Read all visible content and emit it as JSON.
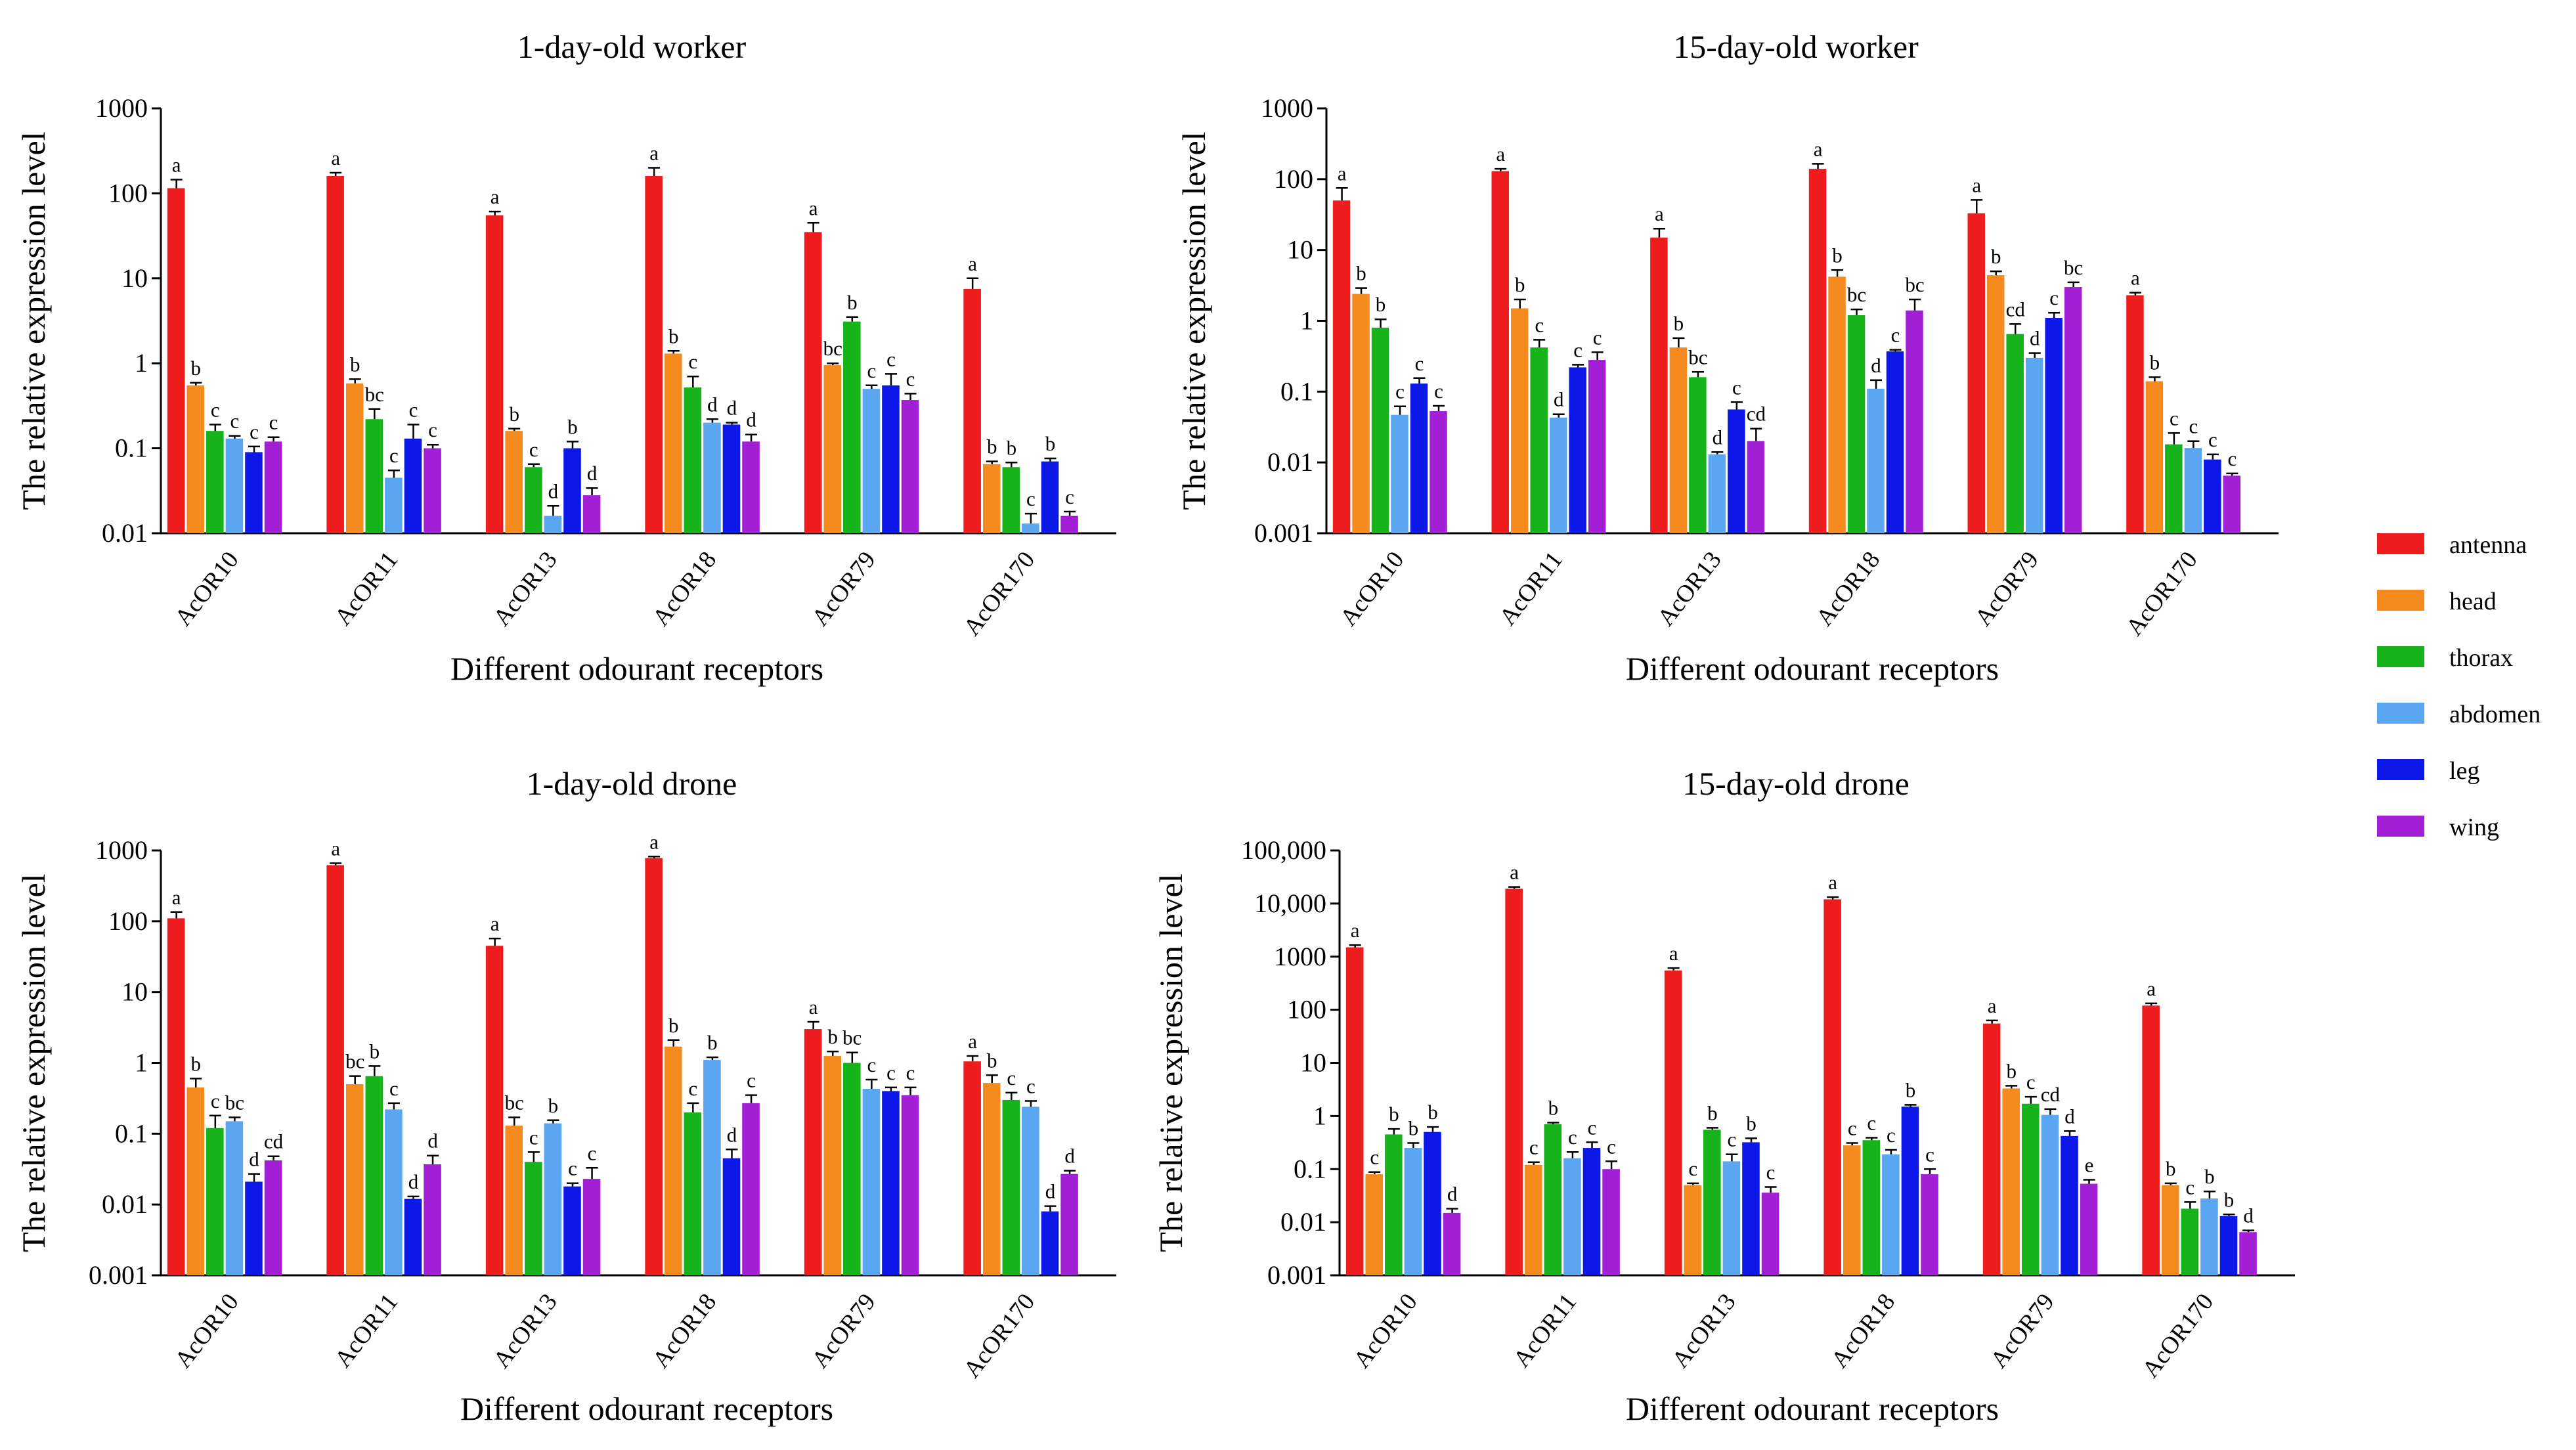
{
  "legend": [
    {
      "name": "antenna",
      "color": "#ee1c1c"
    },
    {
      "name": "head",
      "color": "#f58a1f"
    },
    {
      "name": "thorax",
      "color": "#16b31a"
    },
    {
      "name": "abdomen",
      "color": "#5aa6f0"
    },
    {
      "name": "leg",
      "color": "#0c18e8"
    },
    {
      "name": "wing",
      "color": "#a21fd6"
    }
  ],
  "chart_data": [
    {
      "type": "bar",
      "title": "1-day-old worker",
      "xlabel": "Different odourant receptors",
      "ylabel": "The relative expression level",
      "yscale": "log",
      "ylim": [
        0.01,
        1000
      ],
      "yticks": [
        {
          "v": 0.01,
          "label": "0.01"
        },
        {
          "v": 0.1,
          "label": "0.1"
        },
        {
          "v": 1,
          "label": "1"
        },
        {
          "v": 10,
          "label": "10"
        },
        {
          "v": 100,
          "label": "100"
        },
        {
          "v": 1000,
          "label": "1000"
        }
      ],
      "categories": [
        "AcOR10",
        "AcOR11",
        "AcOR13",
        "AcOR18",
        "AcOR79",
        "AcOR170"
      ],
      "series": [
        {
          "name": "antenna",
          "values": [
            115,
            160,
            55,
            160,
            35,
            7.5
          ],
          "errors": [
            30,
            15,
            6,
            40,
            10,
            2.5
          ],
          "letters": [
            "a",
            "a",
            "a",
            "a",
            "a",
            "a"
          ]
        },
        {
          "name": "head",
          "values": [
            0.55,
            0.58,
            0.16,
            1.3,
            0.95,
            0.065
          ],
          "errors": [
            0.04,
            0.07,
            0.01,
            0.1,
            0.05,
            0.005
          ],
          "letters": [
            "b",
            "b",
            "b",
            "b",
            "bc",
            "b"
          ]
        },
        {
          "name": "thorax",
          "values": [
            0.16,
            0.22,
            0.06,
            0.52,
            3.1,
            0.06
          ],
          "errors": [
            0.03,
            0.07,
            0.005,
            0.18,
            0.4,
            0.008
          ],
          "letters": [
            "c",
            "bc",
            "c",
            "c",
            "b",
            "b"
          ]
        },
        {
          "name": "abdomen",
          "values": [
            0.13,
            0.045,
            0.016,
            0.2,
            0.5,
            0.013
          ],
          "errors": [
            0.01,
            0.01,
            0.005,
            0.02,
            0.05,
            0.004
          ],
          "letters": [
            "c",
            "c",
            "d",
            "d",
            "c",
            "c"
          ]
        },
        {
          "name": "leg",
          "values": [
            0.09,
            0.13,
            0.1,
            0.19,
            0.55,
            0.07
          ],
          "errors": [
            0.015,
            0.06,
            0.02,
            0.01,
            0.2,
            0.006
          ],
          "letters": [
            "c",
            "c",
            "b",
            "d",
            "c",
            "b"
          ]
        },
        {
          "name": "wing",
          "values": [
            0.12,
            0.1,
            0.028,
            0.12,
            0.37,
            0.016
          ],
          "errors": [
            0.015,
            0.01,
            0.006,
            0.025,
            0.07,
            0.002
          ],
          "letters": [
            "c",
            "c",
            "d",
            "d",
            "c",
            "c"
          ]
        }
      ]
    },
    {
      "type": "bar",
      "title": "15-day-old worker",
      "xlabel": "Different odourant receptors",
      "ylabel": "The relative expression level",
      "yscale": "log",
      "ylim": [
        0.001,
        1000
      ],
      "yticks": [
        {
          "v": 0.001,
          "label": "0.001"
        },
        {
          "v": 0.01,
          "label": "0.01"
        },
        {
          "v": 0.1,
          "label": "0.1"
        },
        {
          "v": 1,
          "label": "1"
        },
        {
          "v": 10,
          "label": "10"
        },
        {
          "v": 100,
          "label": "100"
        },
        {
          "v": 1000,
          "label": "1000"
        }
      ],
      "categories": [
        "AcOR10",
        "AcOR11",
        "AcOR13",
        "AcOR18",
        "AcOR79",
        "AcOR170"
      ],
      "series": [
        {
          "name": "antenna",
          "values": [
            50,
            130,
            15,
            140,
            33,
            2.3
          ],
          "errors": [
            25,
            10,
            5,
            25,
            18,
            0.2
          ],
          "letters": [
            "a",
            "a",
            "a",
            "a",
            "a",
            "a"
          ]
        },
        {
          "name": "head",
          "values": [
            2.4,
            1.5,
            0.42,
            4.2,
            4.4,
            0.14
          ],
          "errors": [
            0.5,
            0.5,
            0.15,
            1.0,
            0.6,
            0.02
          ],
          "letters": [
            "b",
            "b",
            "b",
            "b",
            "b",
            "b"
          ]
        },
        {
          "name": "thorax",
          "values": [
            0.8,
            0.42,
            0.16,
            1.2,
            0.65,
            0.018
          ],
          "errors": [
            0.25,
            0.12,
            0.03,
            0.25,
            0.25,
            0.008
          ],
          "letters": [
            "b",
            "c",
            "bc",
            "bc",
            "cd",
            "c"
          ]
        },
        {
          "name": "abdomen",
          "values": [
            0.047,
            0.043,
            0.013,
            0.11,
            0.3,
            0.016
          ],
          "errors": [
            0.015,
            0.005,
            0.001,
            0.035,
            0.05,
            0.004
          ],
          "letters": [
            "c",
            "d",
            "d",
            "d",
            "d",
            "c"
          ]
        },
        {
          "name": "leg",
          "values": [
            0.13,
            0.22,
            0.056,
            0.37,
            1.1,
            0.011
          ],
          "errors": [
            0.025,
            0.02,
            0.015,
            0.02,
            0.2,
            0.002
          ],
          "letters": [
            "c",
            "c",
            "c",
            "c",
            "c",
            "c"
          ]
        },
        {
          "name": "wing",
          "values": [
            0.053,
            0.28,
            0.02,
            1.4,
            3.0,
            0.0065
          ],
          "errors": [
            0.01,
            0.08,
            0.01,
            0.6,
            0.5,
            0.0005
          ],
          "letters": [
            "c",
            "c",
            "cd",
            "bc",
            "bc",
            "c"
          ]
        }
      ]
    },
    {
      "type": "bar",
      "title": "1-day-old drone",
      "xlabel": "Different odourant receptors",
      "ylabel": "The relative expression level",
      "yscale": "log",
      "ylim": [
        0.001,
        1000
      ],
      "yticks": [
        {
          "v": 0.001,
          "label": "0.001"
        },
        {
          "v": 0.01,
          "label": "0.01"
        },
        {
          "v": 0.1,
          "label": "0.1"
        },
        {
          "v": 1,
          "label": "1"
        },
        {
          "v": 10,
          "label": "10"
        },
        {
          "v": 100,
          "label": "100"
        },
        {
          "v": 1000,
          "label": "1000"
        }
      ],
      "categories": [
        "AcOR10",
        "AcOR11",
        "AcOR13",
        "AcOR18",
        "AcOR79",
        "AcOR170"
      ],
      "series": [
        {
          "name": "antenna",
          "values": [
            110,
            620,
            45,
            780,
            3.0,
            1.05
          ],
          "errors": [
            25,
            40,
            12,
            40,
            0.8,
            0.2
          ],
          "letters": [
            "a",
            "a",
            "a",
            "a",
            "a",
            "a"
          ]
        },
        {
          "name": "head",
          "values": [
            0.45,
            0.5,
            0.13,
            1.7,
            1.25,
            0.52
          ],
          "errors": [
            0.15,
            0.15,
            0.04,
            0.4,
            0.2,
            0.15
          ],
          "letters": [
            "b",
            "bc",
            "bc",
            "b",
            "b",
            "b"
          ]
        },
        {
          "name": "thorax",
          "values": [
            0.12,
            0.65,
            0.04,
            0.2,
            1.0,
            0.3
          ],
          "errors": [
            0.06,
            0.25,
            0.015,
            0.07,
            0.4,
            0.08
          ],
          "letters": [
            "c",
            "b",
            "c",
            "c",
            "bc",
            "c"
          ]
        },
        {
          "name": "abdomen",
          "values": [
            0.15,
            0.22,
            0.14,
            1.1,
            0.43,
            0.24
          ],
          "errors": [
            0.02,
            0.05,
            0.015,
            0.1,
            0.15,
            0.05
          ],
          "letters": [
            "bc",
            "c",
            "b",
            "b",
            "c",
            "c"
          ]
        },
        {
          "name": "leg",
          "values": [
            0.021,
            0.012,
            0.018,
            0.045,
            0.4,
            0.008
          ],
          "errors": [
            0.006,
            0.001,
            0.002,
            0.015,
            0.05,
            0.0015
          ],
          "letters": [
            "d",
            "d",
            "c",
            "d",
            "c",
            "d"
          ]
        },
        {
          "name": "wing",
          "values": [
            0.042,
            0.037,
            0.023,
            0.27,
            0.35,
            0.027
          ],
          "errors": [
            0.006,
            0.012,
            0.01,
            0.08,
            0.1,
            0.003
          ],
          "letters": [
            "cd",
            "d",
            "c",
            "c",
            "c",
            "d"
          ]
        }
      ]
    },
    {
      "type": "bar",
      "title": "15-day-old drone",
      "xlabel": "Different odourant receptors",
      "ylabel": "The relative expression level",
      "yscale": "log",
      "ylim": [
        0.001,
        100000
      ],
      "yticks": [
        {
          "v": 0.001,
          "label": "0.001"
        },
        {
          "v": 0.01,
          "label": "0.01"
        },
        {
          "v": 0.1,
          "label": "0.1"
        },
        {
          "v": 1,
          "label": "1"
        },
        {
          "v": 10,
          "label": "10"
        },
        {
          "v": 100,
          "label": "100"
        },
        {
          "v": 1000,
          "label": "1000"
        },
        {
          "v": 10000,
          "label": "10,000"
        },
        {
          "v": 100000,
          "label": "100,000"
        }
      ],
      "categories": [
        "AcOR10",
        "AcOR11",
        "AcOR13",
        "AcOR18",
        "AcOR79",
        "AcOR170"
      ],
      "series": [
        {
          "name": "antenna",
          "values": [
            1500,
            19000,
            550,
            12000,
            55,
            120
          ],
          "errors": [
            150,
            1500,
            60,
            1200,
            8,
            12
          ],
          "letters": [
            "a",
            "a",
            "a",
            "a",
            "a",
            "a"
          ]
        },
        {
          "name": "head",
          "values": [
            0.08,
            0.12,
            0.05,
            0.28,
            3.3,
            0.05
          ],
          "errors": [
            0.008,
            0.015,
            0.004,
            0.03,
            0.4,
            0.004
          ],
          "letters": [
            "c",
            "c",
            "c",
            "c",
            "b",
            "b"
          ]
        },
        {
          "name": "thorax",
          "values": [
            0.45,
            0.7,
            0.55,
            0.35,
            1.7,
            0.018
          ],
          "errors": [
            0.12,
            0.05,
            0.05,
            0.04,
            0.6,
            0.006
          ],
          "letters": [
            "b",
            "b",
            "b",
            "c",
            "c",
            "c"
          ]
        },
        {
          "name": "abdomen",
          "values": [
            0.25,
            0.16,
            0.14,
            0.19,
            1.05,
            0.028
          ],
          "errors": [
            0.06,
            0.05,
            0.05,
            0.04,
            0.3,
            0.01
          ],
          "letters": [
            "b",
            "c",
            "c",
            "c",
            "cd",
            "b"
          ]
        },
        {
          "name": "leg",
          "values": [
            0.5,
            0.25,
            0.32,
            1.5,
            0.42,
            0.013
          ],
          "errors": [
            0.12,
            0.07,
            0.06,
            0.12,
            0.1,
            0.001
          ],
          "letters": [
            "b",
            "c",
            "b",
            "b",
            "d",
            "b"
          ]
        },
        {
          "name": "wing",
          "values": [
            0.015,
            0.1,
            0.036,
            0.08,
            0.053,
            0.0065
          ],
          "errors": [
            0.003,
            0.04,
            0.01,
            0.02,
            0.01,
            0.0005
          ],
          "letters": [
            "d",
            "c",
            "c",
            "c",
            "e",
            "d"
          ]
        }
      ]
    }
  ]
}
